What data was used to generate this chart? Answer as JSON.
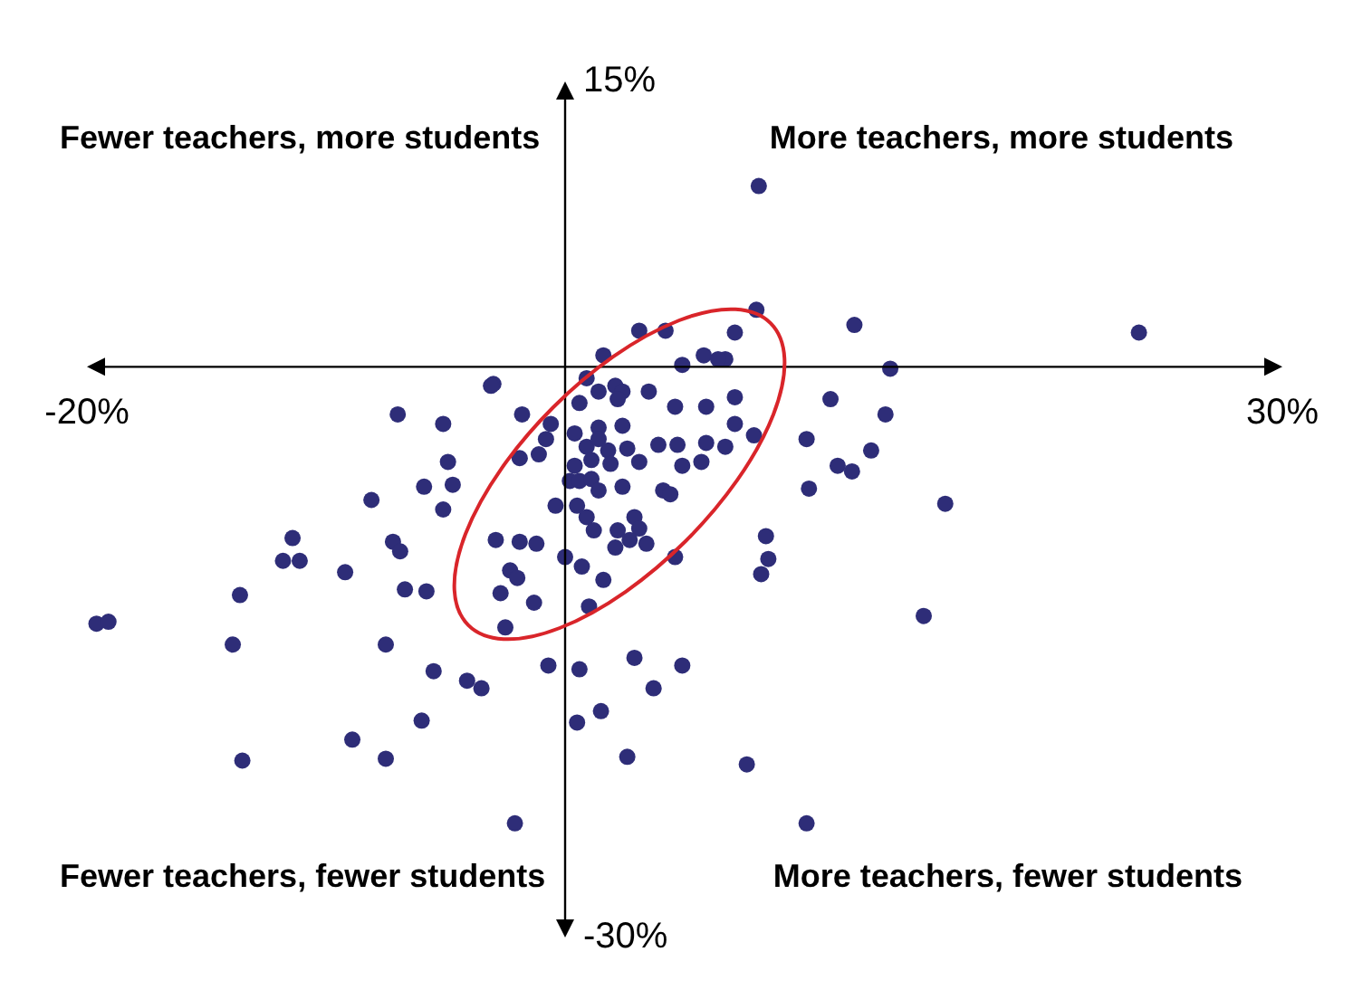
{
  "chart_data": {
    "type": "scatter",
    "xlim": [
      -20,
      30
    ],
    "ylim": [
      -30,
      15
    ],
    "xticks": [
      {
        "value": -20,
        "label": "-20%"
      },
      {
        "value": 30,
        "label": "30%"
      }
    ],
    "yticks": [
      {
        "value": 15,
        "label": "15%"
      },
      {
        "value": -30,
        "label": "-30%"
      }
    ],
    "legend": false,
    "marker": "circle",
    "annotations": [
      "Fewer teachers, more students",
      "More teachers, more students",
      "Fewer teachers, fewer students",
      "More teachers, fewer students"
    ],
    "series": [
      {
        "color": "#2e2d78",
        "x": [
          8.1,
          8.0,
          12.1,
          24.0,
          3.1,
          4.2,
          7.1,
          1.6,
          5.8,
          6.7,
          6.4,
          13.6,
          -3.0,
          -3.1,
          0.9,
          2.1,
          1.4,
          2.4,
          0.6,
          2.2,
          3.5,
          4.9,
          7.1,
          5.9,
          4.6,
          11.1,
          13.4,
          -1.8,
          -7.0,
          -5.1,
          -0.6,
          1.4,
          2.4,
          7.1,
          7.9,
          10.1,
          -0.8,
          0.4,
          -1.9,
          -1.1,
          0.9,
          1.4,
          1.8,
          2.6,
          3.9,
          4.7,
          5.9,
          6.7,
          5.7,
          4.9,
          3.1,
          1.9,
          1.1,
          0.4,
          0.2,
          0.6,
          1.1,
          1.4,
          2.4,
          4.1,
          4.4,
          2.9,
          0.5,
          0.9,
          -0.4,
          1.2,
          2.2,
          3.1,
          3.4,
          2.7,
          2.1,
          0.0,
          0.7,
          -1.9,
          -1.2,
          -2.9,
          -2.3,
          -2.0,
          -2.7,
          -1.3,
          -2.5,
          1.0,
          1.6,
          4.6,
          8.2,
          8.4,
          8.5,
          11.4,
          12.0,
          12.8,
          15.9,
          10.2,
          15.0,
          -5.9,
          -4.7,
          -4.9,
          -8.1,
          -5.1,
          -11.4,
          -11.8,
          -11.1,
          -9.2,
          -7.2,
          -6.9,
          -6.7,
          -5.8,
          -13.6,
          -19.6,
          -19.1,
          -13.9,
          -7.5,
          -5.5,
          -4.1,
          -3.5,
          -6.0,
          -8.9,
          -7.5,
          -13.5,
          -2.1,
          -0.7,
          0.6,
          2.9,
          4.9,
          1.5,
          3.7,
          0.5,
          2.6,
          7.6,
          10.1
        ],
        "values": [
          9.5,
          3.0,
          2.2,
          1.8,
          1.9,
          1.9,
          1.8,
          0.6,
          0.6,
          0.4,
          0.4,
          -0.1,
          -0.9,
          -1.0,
          -0.6,
          -1.0,
          -1.3,
          -1.3,
          -1.9,
          -1.7,
          -1.3,
          0.1,
          -1.6,
          -2.1,
          -2.1,
          -1.7,
          -2.5,
          -2.5,
          -2.5,
          -3.0,
          -3.0,
          -3.2,
          -3.1,
          -3.0,
          -3.6,
          -3.8,
          -3.8,
          -3.5,
          -4.8,
          -4.6,
          -4.2,
          -3.8,
          -4.4,
          -4.3,
          -4.1,
          -4.1,
          -4.0,
          -4.2,
          -5.0,
          -5.2,
          -5.0,
          -5.1,
          -4.9,
          -5.2,
          -6.0,
          -6.0,
          -5.9,
          -6.5,
          -6.3,
          -6.5,
          -6.7,
          -7.9,
          -7.3,
          -7.9,
          -7.3,
          -8.6,
          -8.6,
          -8.5,
          -9.3,
          -9.1,
          -9.5,
          -10.0,
          -10.5,
          -9.2,
          -9.3,
          -9.1,
          -10.7,
          -11.1,
          -11.9,
          -12.4,
          -13.7,
          -12.6,
          -11.2,
          -10.0,
          -10.9,
          -8.9,
          -10.1,
          -5.2,
          -5.5,
          -4.4,
          -7.2,
          -6.4,
          -13.1,
          -6.3,
          -6.2,
          -5.0,
          -7.0,
          -7.5,
          -9.0,
          -10.2,
          -10.2,
          -10.8,
          -9.2,
          -9.7,
          -11.7,
          -11.8,
          -12.0,
          -13.5,
          -13.4,
          -14.6,
          -14.6,
          -16.0,
          -16.5,
          -16.9,
          -18.6,
          -19.6,
          -20.6,
          -20.7,
          -24.0,
          -15.7,
          -15.9,
          -15.3,
          -15.7,
          -18.1,
          -16.9,
          -18.7,
          -20.5,
          -20.9,
          -24.0
        ]
      }
    ]
  }
}
